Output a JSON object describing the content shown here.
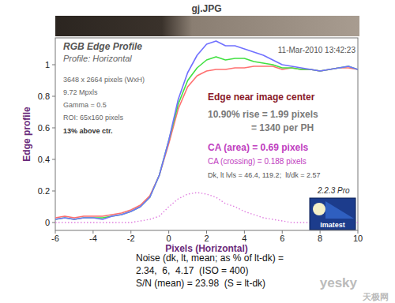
{
  "chart_data": {
    "type": "line",
    "title": "gj.JPG",
    "x_label": "Pixels (Horizontal)",
    "y_label": "Edge profile",
    "x": [
      -6,
      -5.5,
      -5,
      -4.5,
      -4,
      -3.5,
      -3,
      -2.5,
      -2,
      -1.5,
      -1,
      -0.5,
      0,
      0.5,
      1,
      1.5,
      2,
      2.5,
      3,
      3.5,
      4,
      4.5,
      5,
      5.5,
      6,
      6.5,
      7,
      7.5,
      8,
      8.5,
      9,
      9.5,
      10
    ],
    "series": [
      {
        "color": "#ff7070",
        "line_style": "solid",
        "values": [
          0.03,
          0.04,
          0.03,
          0.04,
          0.04,
          0.04,
          0.05,
          0.06,
          0.08,
          0.11,
          0.17,
          0.3,
          0.5,
          0.72,
          0.86,
          0.93,
          0.96,
          0.97,
          0.97,
          0.98,
          0.98,
          0.99,
          0.99,
          0.99,
          0.97,
          0.98,
          0.97,
          0.97,
          0.96,
          0.97,
          0.98,
          0.98,
          0.97
        ]
      },
      {
        "color": "#40e040",
        "line_style": "solid",
        "values": [
          0.02,
          0.03,
          0.02,
          0.03,
          0.03,
          0.03,
          0.04,
          0.05,
          0.07,
          0.1,
          0.16,
          0.3,
          0.52,
          0.75,
          0.9,
          0.98,
          1.03,
          1.05,
          1.03,
          1.04,
          1.04,
          1.02,
          1.01,
          1.0,
          0.98,
          0.98,
          0.97,
          0.97,
          0.96,
          0.97,
          0.98,
          0.99,
          0.97
        ]
      },
      {
        "color": "#7070ff",
        "line_style": "solid",
        "values": [
          0.02,
          0.03,
          0.02,
          0.03,
          0.03,
          0.02,
          0.04,
          0.05,
          0.07,
          0.1,
          0.16,
          0.3,
          0.52,
          0.78,
          0.95,
          1.06,
          1.13,
          1.15,
          1.12,
          1.12,
          1.1,
          1.08,
          1.06,
          1.03,
          1.0,
          0.99,
          0.98,
          0.97,
          0.96,
          0.97,
          0.98,
          0.99,
          0.97
        ]
      },
      {
        "color": "#e080e0",
        "line_style": "dotted",
        "values": [
          0,
          0,
          0,
          0,
          0,
          0,
          0,
          0,
          0,
          0.01,
          0.02,
          0.04,
          0.1,
          0.15,
          0.18,
          0.19,
          0.18,
          0.16,
          0.12,
          0.1,
          0.07,
          0.05,
          0.03,
          0.02,
          0.01,
          0,
          0,
          0,
          0,
          0,
          0,
          0,
          0
        ]
      }
    ],
    "xlim": [
      -6,
      10
    ],
    "xticks": [
      -6,
      -4,
      -2,
      0,
      2,
      4,
      6,
      8,
      10
    ],
    "ylim": [
      -0.05,
      1.17
    ],
    "yticks": [
      0,
      0.2,
      0.4,
      0.6,
      0.8,
      1
    ],
    "grid": false,
    "annotations": [
      "RGB Edge Profile",
      "Profile: Horizontal",
      "11-Mar-2010 13:42:23",
      "3648 x 2664 pixels (WxH)",
      "9.72 Mpxls",
      "Gamma = 0.5",
      "ROI: 65x160 pixels",
      "13% above ctr.",
      "Edge near image center",
      "10.90% rise = 1.99 pixels",
      "= 1340 per PH",
      "CA (area) = 0.69 pixels",
      "CA (crossing) = 0.188 pixels",
      "Dk, lt lvls = 46.4, 119.2;  lt/dk = 2.57",
      "2.2.3 Pro",
      "Imatest",
      "Noise (dk, lt, mean; as % of lt-dk) =",
      "2.34,  6,  4.17  (ISO = 400)",
      "S/N (mean) = 23.98  (S = lt-dk)",
      "yesky",
      "天极网"
    ]
  }
}
